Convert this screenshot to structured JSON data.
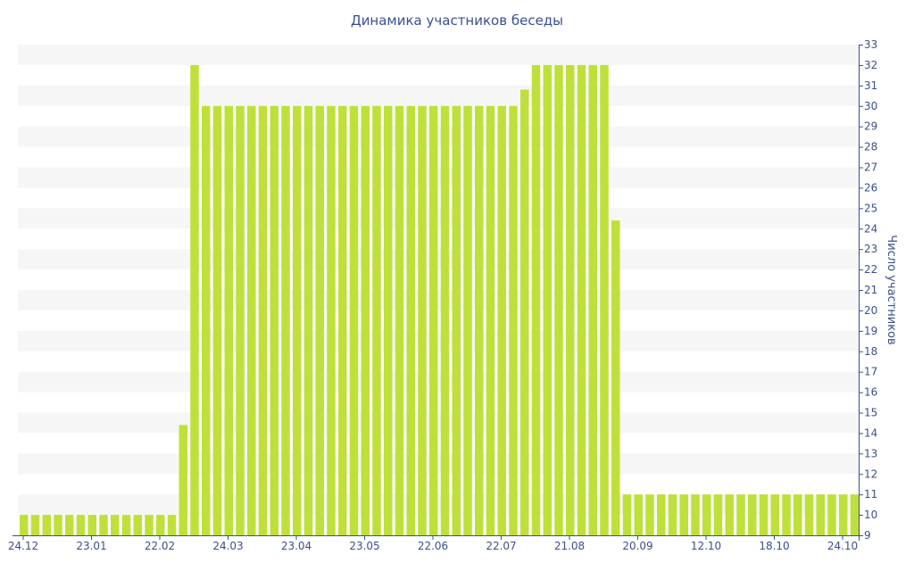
{
  "chart_data": {
    "type": "bar",
    "title": "Динамика участников беседы",
    "xlabel": "",
    "ylabel": "Число участников",
    "ylim": [
      9,
      33
    ],
    "yticks": [
      9,
      10,
      11,
      12,
      13,
      14,
      15,
      16,
      17,
      18,
      19,
      20,
      21,
      22,
      23,
      24,
      25,
      26,
      27,
      28,
      29,
      30,
      31,
      32,
      33
    ],
    "x_tick_labels": [
      "24.12",
      "23.01",
      "22.02",
      "24.03",
      "23.04",
      "23.05",
      "22.06",
      "22.07",
      "21.08",
      "20.09",
      "12.10",
      "18.10",
      "24.10"
    ],
    "grid": "horizontal bands",
    "y_axis_position": "right",
    "colors": {
      "bar": "#bfe03a",
      "band": "#f6f6f6",
      "text": "#3a4f8f",
      "axis": "#3a4f8f"
    },
    "values": [
      10,
      10,
      10,
      10,
      10,
      10,
      10,
      10,
      10,
      10,
      10,
      10,
      10,
      10,
      14.4,
      32,
      30,
      30,
      30,
      30,
      30,
      30,
      30,
      30,
      30,
      30,
      30,
      30,
      30,
      30,
      30,
      30,
      30,
      30,
      30,
      30,
      30,
      30,
      30,
      30,
      30,
      30,
      30,
      30,
      30.8,
      32,
      32,
      32,
      32,
      32,
      32,
      32,
      24.4,
      11,
      11,
      11,
      11,
      11,
      11,
      11,
      11,
      11,
      11,
      11,
      11,
      11,
      11,
      11,
      11,
      11,
      11,
      11,
      11,
      11
    ]
  }
}
